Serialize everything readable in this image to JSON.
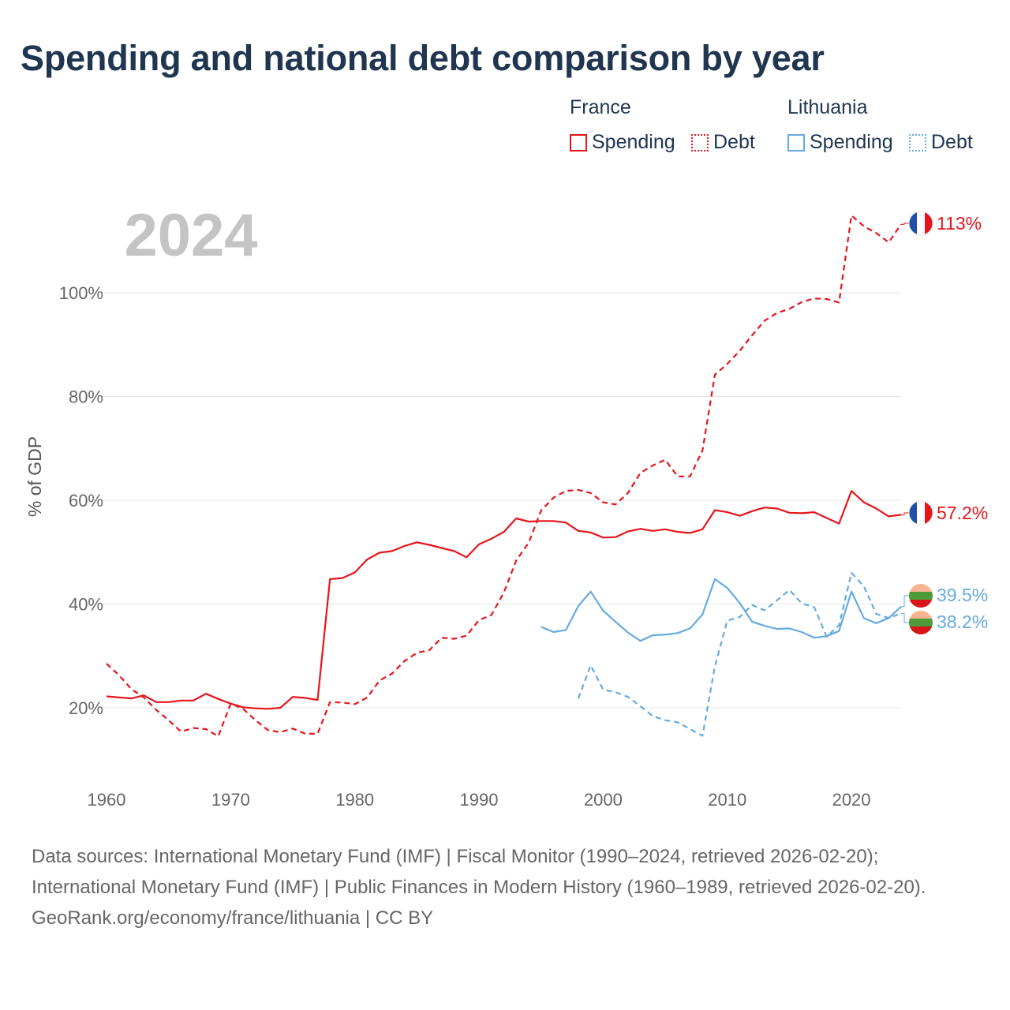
{
  "title": "Spending and national debt comparison by year",
  "legend": {
    "groups": [
      {
        "name": "France",
        "color": "#e8141b",
        "items": [
          {
            "label": "Spending",
            "style": "solid"
          },
          {
            "label": "Debt",
            "style": "dotted"
          }
        ]
      },
      {
        "name": "Lithuania",
        "color": "#66aae2",
        "items": [
          {
            "label": "Spending",
            "style": "solid"
          },
          {
            "label": "Debt",
            "style": "dotted"
          }
        ]
      }
    ]
  },
  "chart_data": {
    "type": "line",
    "title": "Spending and national debt comparison by year",
    "year_label": "2024",
    "xlabel": "",
    "ylabel": "% of GDP",
    "xlim": [
      1960,
      2024
    ],
    "ylim": [
      8,
      116
    ],
    "x_ticks": [
      1960,
      1970,
      1980,
      1990,
      2000,
      2010,
      2020
    ],
    "y_ticks": [
      20,
      40,
      60,
      80,
      100
    ],
    "y_tick_labels": [
      "20%",
      "40%",
      "60%",
      "80%",
      "100%"
    ],
    "grid": true,
    "series": [
      {
        "name": "France Spending",
        "country": "France",
        "metric": "Spending",
        "style": "solid",
        "color": "#e8141b",
        "end_label": "57.2%",
        "x": [
          1960,
          1961,
          1962,
          1963,
          1964,
          1965,
          1966,
          1967,
          1968,
          1969,
          1970,
          1971,
          1972,
          1973,
          1974,
          1975,
          1976,
          1977,
          1978,
          1979,
          1980,
          1981,
          1982,
          1983,
          1984,
          1985,
          1986,
          1987,
          1988,
          1989,
          1990,
          1991,
          1992,
          1993,
          1994,
          1995,
          1996,
          1997,
          1998,
          1999,
          2000,
          2001,
          2002,
          2003,
          2004,
          2005,
          2006,
          2007,
          2008,
          2009,
          2010,
          2011,
          2012,
          2013,
          2014,
          2015,
          2016,
          2017,
          2018,
          2019,
          2020,
          2021,
          2022,
          2023,
          2024
        ],
        "y": [
          22.2,
          22.0,
          21.8,
          22.4,
          21.1,
          21.1,
          21.4,
          21.4,
          22.7,
          21.7,
          20.8,
          20.1,
          19.9,
          19.8,
          20.0,
          22.1,
          21.9,
          21.5,
          44.8,
          45.0,
          46.1,
          48.6,
          49.9,
          50.2,
          51.2,
          51.9,
          51.4,
          50.8,
          50.2,
          49.0,
          51.5,
          52.6,
          53.9,
          56.5,
          55.9,
          56.0,
          56.0,
          55.7,
          54.1,
          53.8,
          52.8,
          52.9,
          54.0,
          54.5,
          54.1,
          54.4,
          53.9,
          53.7,
          54.4,
          58.1,
          57.7,
          57.0,
          57.9,
          58.6,
          58.4,
          57.6,
          57.5,
          57.7,
          56.6,
          55.5,
          61.8,
          59.6,
          58.4,
          56.9,
          57.2
        ]
      },
      {
        "name": "France Debt",
        "country": "France",
        "metric": "Debt",
        "style": "dashed",
        "color": "#e8141b",
        "end_label": "113%",
        "x": [
          1960,
          1961,
          1962,
          1963,
          1964,
          1965,
          1966,
          1967,
          1968,
          1969,
          1970,
          1971,
          1972,
          1973,
          1974,
          1975,
          1976,
          1977,
          1978,
          1979,
          1980,
          1981,
          1982,
          1983,
          1984,
          1985,
          1986,
          1987,
          1988,
          1989,
          1990,
          1991,
          1992,
          1993,
          1994,
          1995,
          1996,
          1997,
          1998,
          1999,
          2000,
          2001,
          2002,
          2003,
          2004,
          2005,
          2006,
          2007,
          2008,
          2009,
          2010,
          2011,
          2012,
          2013,
          2014,
          2015,
          2016,
          2017,
          2018,
          2019,
          2020,
          2021,
          2022,
          2023,
          2024
        ],
        "y": [
          28.5,
          26.3,
          23.6,
          22.0,
          19.6,
          17.6,
          15.4,
          16.1,
          15.9,
          14.5,
          20.8,
          19.8,
          17.6,
          15.7,
          15.3,
          16.0,
          15.0,
          15.0,
          21.1,
          21.0,
          20.7,
          22.0,
          25.3,
          26.6,
          29.0,
          30.6,
          31.1,
          33.5,
          33.3,
          33.9,
          36.9,
          37.9,
          42.2,
          48.4,
          51.8,
          58.0,
          60.5,
          61.8,
          62.0,
          61.4,
          59.6,
          59.2,
          61.4,
          65.3,
          66.7,
          67.8,
          64.6,
          64.6,
          69.6,
          84.2,
          86.3,
          88.8,
          91.8,
          94.6,
          96.1,
          96.9,
          98.2,
          98.9,
          98.8,
          98.1,
          114.9,
          112.8,
          111.5,
          109.7,
          113.2
        ]
      },
      {
        "name": "Lithuania Spending",
        "country": "Lithuania",
        "metric": "Spending",
        "style": "solid",
        "color": "#66aae2",
        "end_label": "39.5%",
        "x": [
          1995,
          1996,
          1997,
          1998,
          1999,
          2000,
          2001,
          2002,
          2003,
          2004,
          2005,
          2006,
          2007,
          2008,
          2009,
          2010,
          2011,
          2012,
          2013,
          2014,
          2015,
          2016,
          2017,
          2018,
          2019,
          2020,
          2021,
          2022,
          2023,
          2024
        ],
        "y": [
          35.6,
          34.6,
          35.0,
          39.6,
          42.4,
          38.7,
          36.6,
          34.5,
          32.9,
          34.0,
          34.1,
          34.4,
          35.3,
          38.0,
          44.8,
          43.1,
          40.2,
          36.6,
          35.8,
          35.2,
          35.3,
          34.6,
          33.5,
          33.8,
          34.8,
          42.4,
          37.3,
          36.3,
          37.3,
          39.5
        ]
      },
      {
        "name": "Lithuania Debt",
        "country": "Lithuania",
        "metric": "Debt",
        "style": "dashed",
        "color": "#66aae2",
        "end_label": "38.2%",
        "x": [
          1998,
          1999,
          2000,
          2001,
          2002,
          2003,
          2004,
          2005,
          2006,
          2007,
          2008,
          2009,
          2010,
          2011,
          2012,
          2013,
          2014,
          2015,
          2016,
          2017,
          2018,
          2019,
          2020,
          2021,
          2022,
          2023,
          2024
        ],
        "y": [
          21.8,
          28.2,
          23.5,
          23.0,
          22.1,
          20.3,
          18.4,
          17.6,
          17.2,
          15.9,
          14.6,
          28.0,
          36.8,
          37.5,
          39.8,
          38.8,
          40.7,
          42.7,
          40.1,
          39.4,
          33.7,
          35.9,
          46.0,
          43.4,
          38.1,
          37.3,
          38.2
        ]
      }
    ],
    "end_markers": [
      {
        "series": "France Debt",
        "flag": "france-flag"
      },
      {
        "series": "France Spending",
        "flag": "france-flag"
      },
      {
        "series": "Lithuania Spending",
        "flag": "lithuania-flag"
      },
      {
        "series": "Lithuania Debt",
        "flag": "lithuania-flag"
      }
    ]
  },
  "footer": {
    "sources": "Data sources: International Monetary Fund (IMF) | Fiscal Monitor (1990–2024, retrieved 2026-02-20); International Monetary Fund (IMF) | Public Finances in Modern History (1960–1989, retrieved 2026-02-20).",
    "credit": "GeoRank.org/economy/france/lithuania | CC BY"
  }
}
